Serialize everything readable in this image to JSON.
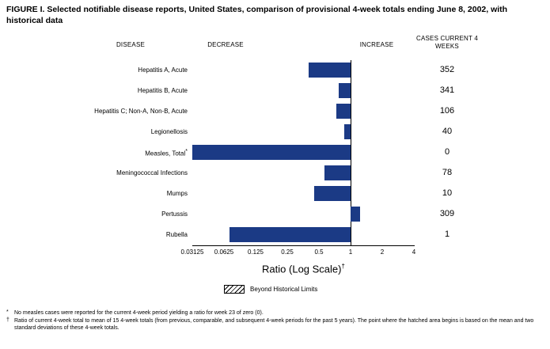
{
  "title": "FIGURE I. Selected notifiable disease reports, United States, comparison of provisional 4-week totals ending June 8, 2002, with historical data",
  "headers": {
    "disease": "DISEASE",
    "decrease": "DECREASE",
    "increase": "INCREASE",
    "cases": "CASES CURRENT 4 WEEKS"
  },
  "chart_data": {
    "type": "bar",
    "orientation": "horizontal",
    "x_scale": "log2",
    "x_min": 0.03125,
    "x_max": 4,
    "baseline": 1,
    "x_ticks": [
      "0.03125",
      "0.0625",
      "0.125",
      "0.25",
      "0.5",
      "1",
      "2",
      "4"
    ],
    "xlabel": "Ratio (Log Scale)",
    "xlabel_sup": "†",
    "bar_color": "#1b3a85",
    "rows": [
      {
        "disease": "Hepatitis A, Acute",
        "ratio": 0.4,
        "cases": "352"
      },
      {
        "disease": "Hepatitis B, Acute",
        "ratio": 0.77,
        "cases": "341"
      },
      {
        "disease": "Hepatitis C; Non-A, Non-B, Acute",
        "ratio": 0.73,
        "cases": "106"
      },
      {
        "disease": "Legionellosis",
        "ratio": 0.87,
        "cases": "40"
      },
      {
        "disease": "Measles, Total",
        "label_sup": "*",
        "ratio": 0.03125,
        "cases": "0"
      },
      {
        "disease": "Meningococcal Infections",
        "ratio": 0.56,
        "cases": "78"
      },
      {
        "disease": "Mumps",
        "ratio": 0.45,
        "cases": "10"
      },
      {
        "disease": "Pertussis",
        "ratio": 1.23,
        "cases": "309"
      },
      {
        "disease": "Rubella",
        "ratio": 0.07,
        "cases": "1"
      }
    ]
  },
  "legend": {
    "label": "Beyond Historical Limits"
  },
  "footnotes": [
    {
      "marker": "*",
      "text": "No measles cases were reported for the current 4-week period yielding a ratio for week 23 of zero (0)."
    },
    {
      "marker": "†",
      "text": "Ratio of current 4-week total to mean of 15 4-week totals (from previous, comparable, and subsequent 4-week periods for the past 5 years). The point where the hatched area begins is based on the mean and two standard deviations of these 4-week totals."
    }
  ]
}
